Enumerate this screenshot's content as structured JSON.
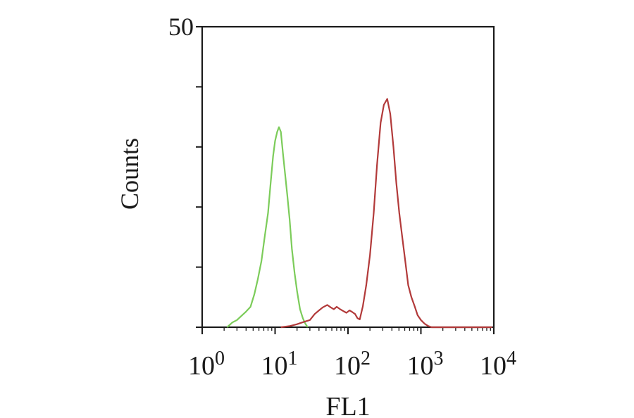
{
  "chart_data": {
    "type": "line",
    "title": "",
    "xlabel": "FL1",
    "ylabel": "Counts",
    "x_scale": "log",
    "xlim": [
      1,
      10000
    ],
    "ylim": [
      0,
      50
    ],
    "grid": false,
    "legend": "none",
    "x_ticks": [
      {
        "value": 1,
        "base": "10",
        "exp": "0"
      },
      {
        "value": 10,
        "base": "10",
        "exp": "1"
      },
      {
        "value": 100,
        "base": "10",
        "exp": "2"
      },
      {
        "value": 1000,
        "base": "10",
        "exp": "3"
      },
      {
        "value": 10000,
        "base": "10",
        "exp": "4"
      }
    ],
    "y_ticks": [
      {
        "value": 0,
        "label": ""
      },
      {
        "value": 10,
        "label": ""
      },
      {
        "value": 20,
        "label": ""
      },
      {
        "value": 30,
        "label": ""
      },
      {
        "value": 40,
        "label": ""
      },
      {
        "value": 50,
        "label": "50"
      }
    ],
    "series": [
      {
        "color": "#7ccc5a",
        "points": [
          [
            2.2,
            0
          ],
          [
            2.6,
            0.8
          ],
          [
            3.0,
            1.2
          ],
          [
            3.4,
            1.8
          ],
          [
            4.0,
            2.6
          ],
          [
            4.6,
            3.4
          ],
          [
            5.2,
            5.5
          ],
          [
            5.8,
            8.0
          ],
          [
            6.5,
            11.0
          ],
          [
            7.2,
            15.0
          ],
          [
            8.0,
            19.0
          ],
          [
            8.7,
            24.0
          ],
          [
            9.4,
            28.5
          ],
          [
            10.0,
            31.0
          ],
          [
            10.7,
            32.5
          ],
          [
            11.3,
            33.3
          ],
          [
            12.0,
            32.5
          ],
          [
            12.8,
            29.0
          ],
          [
            13.7,
            25.5
          ],
          [
            14.7,
            22.0
          ],
          [
            15.8,
            18.0
          ],
          [
            17.0,
            13.0
          ],
          [
            18.5,
            9.0
          ],
          [
            20.0,
            6.0
          ],
          [
            22.0,
            3.0
          ],
          [
            24.0,
            1.5
          ],
          [
            26.0,
            0.6
          ],
          [
            28.0,
            0
          ]
        ]
      },
      {
        "color": "#b23a3a",
        "points": [
          [
            12,
            0
          ],
          [
            16,
            0.2
          ],
          [
            20,
            0.5
          ],
          [
            25,
            0.9
          ],
          [
            30,
            1.2
          ],
          [
            35,
            2.2
          ],
          [
            40,
            2.8
          ],
          [
            45,
            3.3
          ],
          [
            52,
            3.7
          ],
          [
            58,
            3.3
          ],
          [
            64,
            3.0
          ],
          [
            70,
            3.4
          ],
          [
            78,
            3.0
          ],
          [
            86,
            2.7
          ],
          [
            95,
            2.4
          ],
          [
            105,
            2.8
          ],
          [
            115,
            2.5
          ],
          [
            125,
            2.2
          ],
          [
            135,
            1.5
          ],
          [
            145,
            1.3
          ],
          [
            160,
            3.5
          ],
          [
            178,
            7.0
          ],
          [
            200,
            12.0
          ],
          [
            225,
            19.0
          ],
          [
            250,
            27.0
          ],
          [
            280,
            34.0
          ],
          [
            310,
            37.0
          ],
          [
            345,
            38.0
          ],
          [
            380,
            35.5
          ],
          [
            420,
            30.0
          ],
          [
            460,
            24.0
          ],
          [
            505,
            19.0
          ],
          [
            555,
            15.0
          ],
          [
            610,
            11.0
          ],
          [
            670,
            7.0
          ],
          [
            740,
            5.0
          ],
          [
            820,
            3.5
          ],
          [
            900,
            2.0
          ],
          [
            1000,
            1.2
          ],
          [
            1120,
            0.6
          ],
          [
            1260,
            0.2
          ],
          [
            1400,
            0
          ],
          [
            3000,
            0
          ],
          [
            9500,
            0
          ]
        ]
      }
    ]
  }
}
